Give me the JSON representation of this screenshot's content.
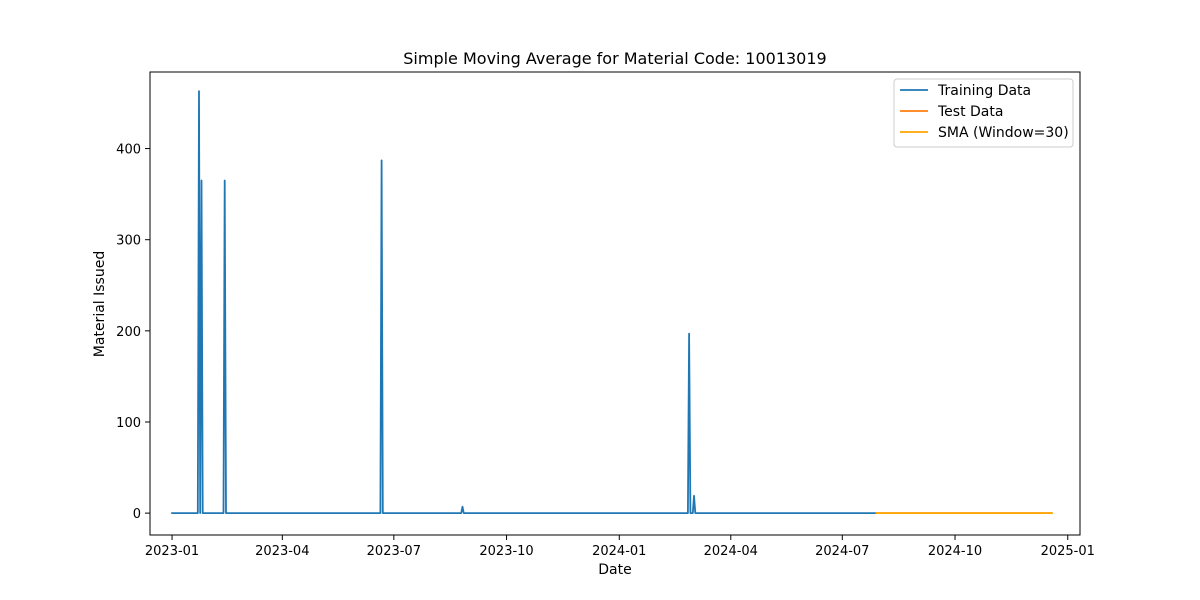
{
  "chart_data": {
    "type": "line",
    "title": "Simple Moving Average for Material Code: 10013019",
    "xlabel": "Date",
    "ylabel": "Material Issued",
    "x_type": "date",
    "xlim": [
      "2022-12-14",
      "2025-01-11"
    ],
    "ylim": [
      -24,
      484
    ],
    "x_ticks": [
      "2023-01-01",
      "2023-04-01",
      "2023-07-01",
      "2023-10-01",
      "2024-01-01",
      "2024-04-01",
      "2024-07-01",
      "2024-10-01",
      "2025-01-01"
    ],
    "x_tick_labels": [
      "2023-01",
      "2023-04",
      "2023-07",
      "2023-10",
      "2024-01",
      "2024-04",
      "2024-07",
      "2024-10",
      "2025-01"
    ],
    "y_ticks": [
      0,
      100,
      200,
      300,
      400
    ],
    "y_tick_labels": [
      "0",
      "100",
      "200",
      "300",
      "400"
    ],
    "grid": false,
    "legend": "top-right",
    "series": [
      {
        "name": "Training Data",
        "color": "#1f77b4",
        "x": [
          "2023-01-01",
          "2023-01-22",
          "2023-01-23",
          "2023-01-24",
          "2023-01-25",
          "2023-01-26",
          "2023-02-12",
          "2023-02-13",
          "2023-02-14",
          "2023-06-20",
          "2023-06-21",
          "2023-06-22",
          "2023-08-25",
          "2023-08-26",
          "2023-08-27",
          "2024-02-26",
          "2024-02-27",
          "2024-02-28",
          "2024-03-01",
          "2024-03-02",
          "2024-03-03",
          "2024-07-29"
        ],
        "y": [
          0,
          0,
          463,
          0,
          365,
          0,
          0,
          365,
          0,
          0,
          387,
          0,
          0,
          7,
          0,
          0,
          197,
          0,
          0,
          19,
          0,
          0
        ]
      },
      {
        "name": "Test Data",
        "color": "#ff7f0e",
        "x": [
          "2024-07-29",
          "2024-12-19"
        ],
        "y": [
          0,
          0
        ]
      },
      {
        "name": "SMA (Window=30)",
        "color": "#ffa500",
        "x": [
          "2024-07-29",
          "2024-12-19"
        ],
        "y": [
          0,
          0
        ]
      }
    ]
  }
}
